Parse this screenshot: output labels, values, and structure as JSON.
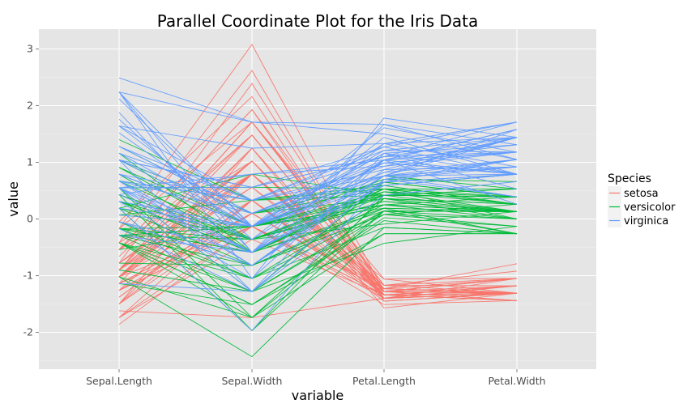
{
  "chart_data": {
    "type": "line",
    "title": "Parallel Coordinate Plot for the Iris Data",
    "xlabel": "variable",
    "ylabel": "value",
    "categories": [
      "Sepal.Length",
      "Sepal.Width",
      "Petal.Length",
      "Petal.Width"
    ],
    "ylim": [
      -2.65,
      3.35
    ],
    "yticks": [
      -2,
      -1,
      0,
      1,
      2,
      3
    ],
    "grid": true,
    "legend": {
      "title": "Species",
      "placement": "right",
      "entries": [
        "setosa",
        "versicolor",
        "virginica"
      ]
    },
    "colors": {
      "setosa": "#F8766D",
      "versicolor": "#00BA38",
      "virginica": "#619CFF",
      "panel": "#E5E5E5",
      "grid": "#FFFFFF"
    },
    "series": [
      {
        "name": "setosa",
        "values": [
          [
            -0.9,
            1.02,
            -1.34,
            -1.31
          ],
          [
            -1.14,
            -0.13,
            -1.34,
            -1.31
          ],
          [
            -1.38,
            0.33,
            -1.4,
            -1.31
          ],
          [
            -1.5,
            0.1,
            -1.28,
            -1.31
          ],
          [
            -1.02,
            1.25,
            -1.34,
            -1.31
          ],
          [
            -0.54,
            1.93,
            -1.17,
            -1.05
          ],
          [
            -1.5,
            0.79,
            -1.34,
            -1.18
          ],
          [
            -1.02,
            0.79,
            -1.28,
            -1.31
          ],
          [
            -1.74,
            -0.36,
            -1.34,
            -1.31
          ],
          [
            -1.14,
            0.1,
            -1.28,
            -1.44
          ],
          [
            -0.54,
            1.48,
            -1.28,
            -1.31
          ],
          [
            -1.26,
            0.79,
            -1.23,
            -1.31
          ],
          [
            -1.26,
            -0.13,
            -1.34,
            -1.44
          ],
          [
            -1.86,
            -0.13,
            -1.51,
            -1.44
          ],
          [
            -0.05,
            2.16,
            -1.45,
            -1.31
          ],
          [
            -0.17,
            3.08,
            -1.28,
            -1.05
          ],
          [
            -0.54,
            1.93,
            -1.4,
            -1.05
          ],
          [
            -0.9,
            1.02,
            -1.34,
            -1.18
          ],
          [
            -0.17,
            1.71,
            -1.17,
            -1.18
          ],
          [
            -0.9,
            1.71,
            -1.28,
            -1.18
          ],
          [
            -0.54,
            0.79,
            -1.17,
            -1.31
          ],
          [
            -0.9,
            1.48,
            -1.28,
            -1.05
          ],
          [
            -1.5,
            1.25,
            -1.57,
            -1.31
          ],
          [
            -0.9,
            0.56,
            -1.17,
            -0.92
          ],
          [
            -1.26,
            0.79,
            -1.06,
            -1.31
          ],
          [
            -1.02,
            -0.13,
            -1.23,
            -1.31
          ],
          [
            -1.02,
            0.79,
            -1.23,
            -1.05
          ],
          [
            -0.78,
            1.02,
            -1.28,
            -1.31
          ],
          [
            -0.78,
            0.79,
            -1.34,
            -1.31
          ],
          [
            -1.38,
            0.33,
            -1.23,
            -1.31
          ],
          [
            -1.26,
            0.1,
            -1.23,
            -1.31
          ],
          [
            -0.54,
            0.79,
            -1.28,
            -1.05
          ],
          [
            -0.78,
            2.39,
            -1.28,
            -1.44
          ],
          [
            -0.42,
            2.62,
            -1.34,
            -1.31
          ],
          [
            -1.14,
            0.1,
            -1.28,
            -1.31
          ],
          [
            -1.02,
            0.33,
            -1.45,
            -1.31
          ],
          [
            -0.42,
            1.02,
            -1.4,
            -1.31
          ],
          [
            -1.14,
            1.25,
            -1.34,
            -1.44
          ],
          [
            -1.74,
            -0.13,
            -1.4,
            -1.31
          ],
          [
            -0.9,
            0.79,
            -1.28,
            -1.31
          ],
          [
            -1.02,
            1.02,
            -1.4,
            -1.18
          ],
          [
            -1.62,
            -1.74,
            -1.4,
            -1.18
          ],
          [
            -1.74,
            0.33,
            -1.4,
            -1.31
          ],
          [
            -1.02,
            1.02,
            -1.23,
            -0.79
          ],
          [
            -0.9,
            1.71,
            -1.06,
            -1.05
          ],
          [
            -1.26,
            -0.13,
            -1.34,
            -1.18
          ],
          [
            -0.9,
            1.71,
            -1.23,
            -1.31
          ],
          [
            -1.5,
            0.33,
            -1.34,
            -1.31
          ],
          [
            -0.66,
            1.48,
            -1.28,
            -1.31
          ],
          [
            -1.02,
            0.56,
            -1.34,
            -1.31
          ]
        ]
      },
      {
        "name": "versicolor",
        "values": [
          [
            1.4,
            0.33,
            0.53,
            0.26
          ],
          [
            0.67,
            0.33,
            0.42,
            0.39
          ],
          [
            1.28,
            0.1,
            0.65,
            0.39
          ],
          [
            -0.42,
            -1.74,
            0.14,
            0.13
          ],
          [
            0.79,
            -0.59,
            0.48,
            0.39
          ],
          [
            -0.17,
            -0.59,
            0.42,
            0.13
          ],
          [
            0.55,
            0.56,
            0.53,
            0.53
          ],
          [
            -1.14,
            -1.51,
            -0.26,
            -0.26
          ],
          [
            0.91,
            -0.36,
            0.48,
            0.13
          ],
          [
            -0.78,
            -0.82,
            0.08,
            0.26
          ],
          [
            -1.02,
            -2.43,
            -0.15,
            -0.26
          ],
          [
            0.07,
            -0.13,
            0.25,
            0.39
          ],
          [
            0.19,
            -1.97,
            0.14,
            -0.26
          ],
          [
            0.31,
            -0.36,
            0.53,
            0.26
          ],
          [
            -0.29,
            -0.36,
            -0.09,
            0.13
          ],
          [
            1.04,
            0.1,
            0.36,
            0.26
          ],
          [
            -0.29,
            -0.13,
            0.42,
            0.39
          ],
          [
            -0.05,
            -0.82,
            0.19,
            -0.26
          ],
          [
            0.43,
            -1.97,
            0.42,
            0.39
          ],
          [
            -0.29,
            -1.28,
            0.08,
            -0.13
          ],
          [
            0.07,
            0.33,
            0.59,
            0.79
          ],
          [
            0.31,
            -0.59,
            0.14,
            0.13
          ],
          [
            0.55,
            -1.28,
            0.65,
            0.39
          ],
          [
            0.31,
            -0.59,
            0.53,
            0.0
          ],
          [
            0.67,
            -0.36,
            0.31,
            0.13
          ],
          [
            0.91,
            -0.13,
            0.36,
            0.26
          ],
          [
            1.16,
            -0.59,
            0.59,
            0.26
          ],
          [
            1.04,
            -0.13,
            0.7,
            0.66
          ],
          [
            0.19,
            -0.36,
            0.42,
            0.39
          ],
          [
            -0.17,
            -1.05,
            -0.15,
            -0.26
          ],
          [
            -0.42,
            -1.51,
            0.02,
            -0.13
          ],
          [
            -0.42,
            -1.51,
            -0.03,
            -0.26
          ],
          [
            -0.05,
            -0.82,
            0.08,
            0.0
          ],
          [
            0.19,
            -0.82,
            0.76,
            0.53
          ],
          [
            -0.54,
            -0.13,
            0.42,
            0.39
          ],
          [
            0.19,
            0.79,
            0.42,
            0.53
          ],
          [
            1.04,
            0.1,
            0.53,
            0.39
          ],
          [
            0.55,
            -1.74,
            0.36,
            0.13
          ],
          [
            -0.29,
            -0.13,
            0.19,
            0.13
          ],
          [
            -0.42,
            -1.28,
            0.14,
            0.13
          ],
          [
            -0.42,
            -1.05,
            0.36,
            0.0
          ],
          [
            0.31,
            -0.13,
            0.48,
            0.26
          ],
          [
            -0.05,
            -1.05,
            0.14,
            0.0
          ],
          [
            -1.02,
            -1.74,
            -0.26,
            -0.26
          ],
          [
            -0.29,
            -0.82,
            0.25,
            0.13
          ],
          [
            -0.17,
            -0.13,
            0.25,
            0.0
          ],
          [
            -0.17,
            -0.36,
            0.25,
            0.13
          ],
          [
            0.43,
            -0.36,
            0.31,
            0.13
          ],
          [
            -0.9,
            -1.28,
            -0.43,
            -0.13
          ],
          [
            -0.17,
            -0.59,
            0.19,
            0.13
          ]
        ]
      },
      {
        "name": "virginica",
        "values": [
          [
            0.55,
            0.56,
            1.27,
            1.71
          ],
          [
            -0.05,
            -0.82,
            0.76,
            0.92
          ],
          [
            1.52,
            -0.13,
            1.21,
            1.18
          ],
          [
            0.55,
            -0.36,
            1.04,
            0.79
          ],
          [
            0.79,
            -0.13,
            1.16,
            1.31
          ],
          [
            2.12,
            -0.13,
            1.61,
            1.18
          ],
          [
            -1.14,
            -1.28,
            0.42,
            0.66
          ],
          [
            1.76,
            -0.36,
            1.44,
            0.79
          ],
          [
            1.04,
            -1.28,
            1.16,
            0.79
          ],
          [
            1.64,
            1.25,
            1.33,
            1.71
          ],
          [
            0.79,
            0.33,
            0.76,
            1.05
          ],
          [
            0.67,
            -0.82,
            0.87,
            0.92
          ],
          [
            1.16,
            -0.13,
            0.99,
            1.18
          ],
          [
            -0.17,
            -1.28,
            0.7,
            1.05
          ],
          [
            -0.05,
            -0.59,
            0.76,
            1.58
          ],
          [
            0.67,
            0.33,
            0.87,
            1.44
          ],
          [
            0.79,
            -0.13,
            0.99,
            0.79
          ],
          [
            2.24,
            1.71,
            1.67,
            1.31
          ],
          [
            2.24,
            -1.05,
            1.78,
            1.44
          ],
          [
            0.19,
            -1.97,
            0.7,
            0.39
          ],
          [
            1.28,
            0.33,
            1.1,
            1.44
          ],
          [
            -0.29,
            -0.59,
            0.65,
            1.05
          ],
          [
            2.24,
            -0.59,
            1.67,
            1.05
          ],
          [
            0.55,
            -0.82,
            0.65,
            0.79
          ],
          [
            1.04,
            0.56,
            1.1,
            1.18
          ],
          [
            1.64,
            0.33,
            1.27,
            0.79
          ],
          [
            0.43,
            -0.59,
            0.59,
            0.79
          ],
          [
            0.31,
            -0.13,
            0.65,
            0.79
          ],
          [
            0.67,
            -0.59,
            1.04,
            1.18
          ],
          [
            1.64,
            -0.13,
            1.16,
            0.53
          ],
          [
            1.88,
            -0.59,
            1.33,
            0.92
          ],
          [
            2.49,
            1.71,
            1.5,
            1.05
          ],
          [
            0.67,
            -0.59,
            1.04,
            1.31
          ],
          [
            0.55,
            -0.59,
            0.76,
            0.39
          ],
          [
            0.31,
            -1.05,
            1.04,
            0.26
          ],
          [
            2.24,
            -0.13,
            1.33,
            1.44
          ],
          [
            0.55,
            0.79,
            1.04,
            1.58
          ],
          [
            0.67,
            0.1,
            0.99,
            0.79
          ],
          [
            0.19,
            -0.13,
            0.59,
            0.79
          ],
          [
            1.28,
            0.1,
            0.93,
            1.18
          ],
          [
            1.04,
            0.1,
            1.04,
            1.58
          ],
          [
            1.28,
            0.1,
            0.76,
            1.44
          ],
          [
            -0.05,
            -0.82,
            0.76,
            0.92
          ],
          [
            1.16,
            0.33,
            1.21,
            1.44
          ],
          [
            1.04,
            0.56,
            1.1,
            1.71
          ],
          [
            1.04,
            -0.13,
            0.82,
            1.44
          ],
          [
            0.55,
            -1.28,
            0.7,
            0.92
          ],
          [
            0.79,
            -0.13,
            0.82,
            1.05
          ],
          [
            0.43,
            0.79,
            0.93,
            1.44
          ],
          [
            0.07,
            -0.13,
            0.76,
            0.79
          ]
        ]
      }
    ]
  }
}
